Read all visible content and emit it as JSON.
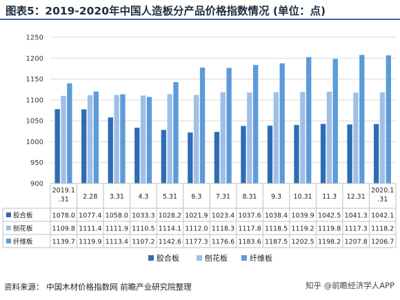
{
  "title": "图表5：2019-2020年中国人造板分产品价格指数情况 (单位：点)",
  "source": "资料来源：  中国木材价格指数网 前瞻产业研究院整理",
  "watermark": "知乎 @前瞻经济学人APP",
  "colors": {
    "title_rule": "#2f6db5",
    "grid": "#d9d9d9"
  },
  "chart_data": {
    "type": "bar",
    "categories": [
      "2019.1\n.31",
      "2.28",
      "3.31",
      "4.3",
      "5.31",
      "6.3",
      "7.31",
      "8.31",
      "9.3",
      "10.31",
      "11.3",
      "12.31",
      "2020.1\n.31"
    ],
    "ylim": [
      900,
      1250
    ],
    "yticks": [
      900,
      950,
      1000,
      1050,
      1100,
      1150,
      1200,
      1250
    ],
    "legend_position": "bottom",
    "grid": true,
    "series": [
      {
        "name": "胶合板",
        "color": "#2e6db4",
        "values": [
          1078.0,
          1077.4,
          1058.0,
          1033.3,
          1028.2,
          1021.9,
          1023.4,
          1037.6,
          1038.4,
          1039.9,
          1042.5,
          1041.3,
          1042.1
        ]
      },
      {
        "name": "刨花板",
        "color": "#9fbfe6",
        "values": [
          1109.8,
          1111.4,
          1111.9,
          1110.5,
          1114.1,
          1112.0,
          1118.3,
          1117.8,
          1118.5,
          1119.2,
          1119.8,
          1117.3,
          1118.2
        ]
      },
      {
        "name": "纤维板",
        "color": "#5b9bd9",
        "values": [
          1139.7,
          1119.9,
          1113.4,
          1107.2,
          1142.6,
          1177.3,
          1176.6,
          1183.6,
          1187.5,
          1202.5,
          1198.2,
          1207.8,
          1206.7
        ]
      }
    ]
  }
}
